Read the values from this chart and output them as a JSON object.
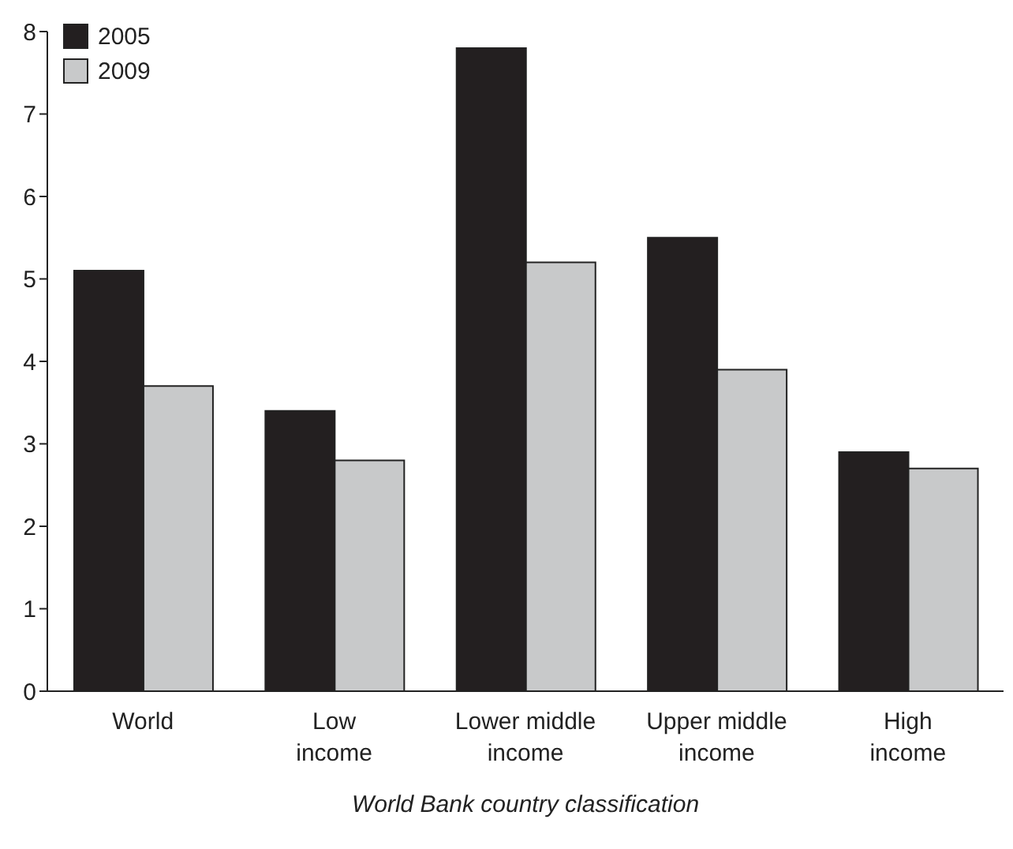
{
  "chart_data": {
    "type": "bar",
    "xlabel": "World Bank country classification",
    "categories": [
      "World",
      "Low income",
      "Lower middle income",
      "Upper middle income",
      "High income"
    ],
    "series": [
      {
        "name": "2005",
        "color": "#231f20",
        "values": [
          5.1,
          3.4,
          7.8,
          5.5,
          2.9
        ]
      },
      {
        "name": "2009",
        "color": "#c8c9ca",
        "values": [
          3.7,
          2.8,
          5.2,
          3.9,
          2.7
        ]
      }
    ],
    "ylim": [
      0,
      8
    ],
    "yticks": [
      0,
      1,
      2,
      3,
      4,
      5,
      6,
      7,
      8
    ],
    "grid": false,
    "legend": "top left"
  }
}
